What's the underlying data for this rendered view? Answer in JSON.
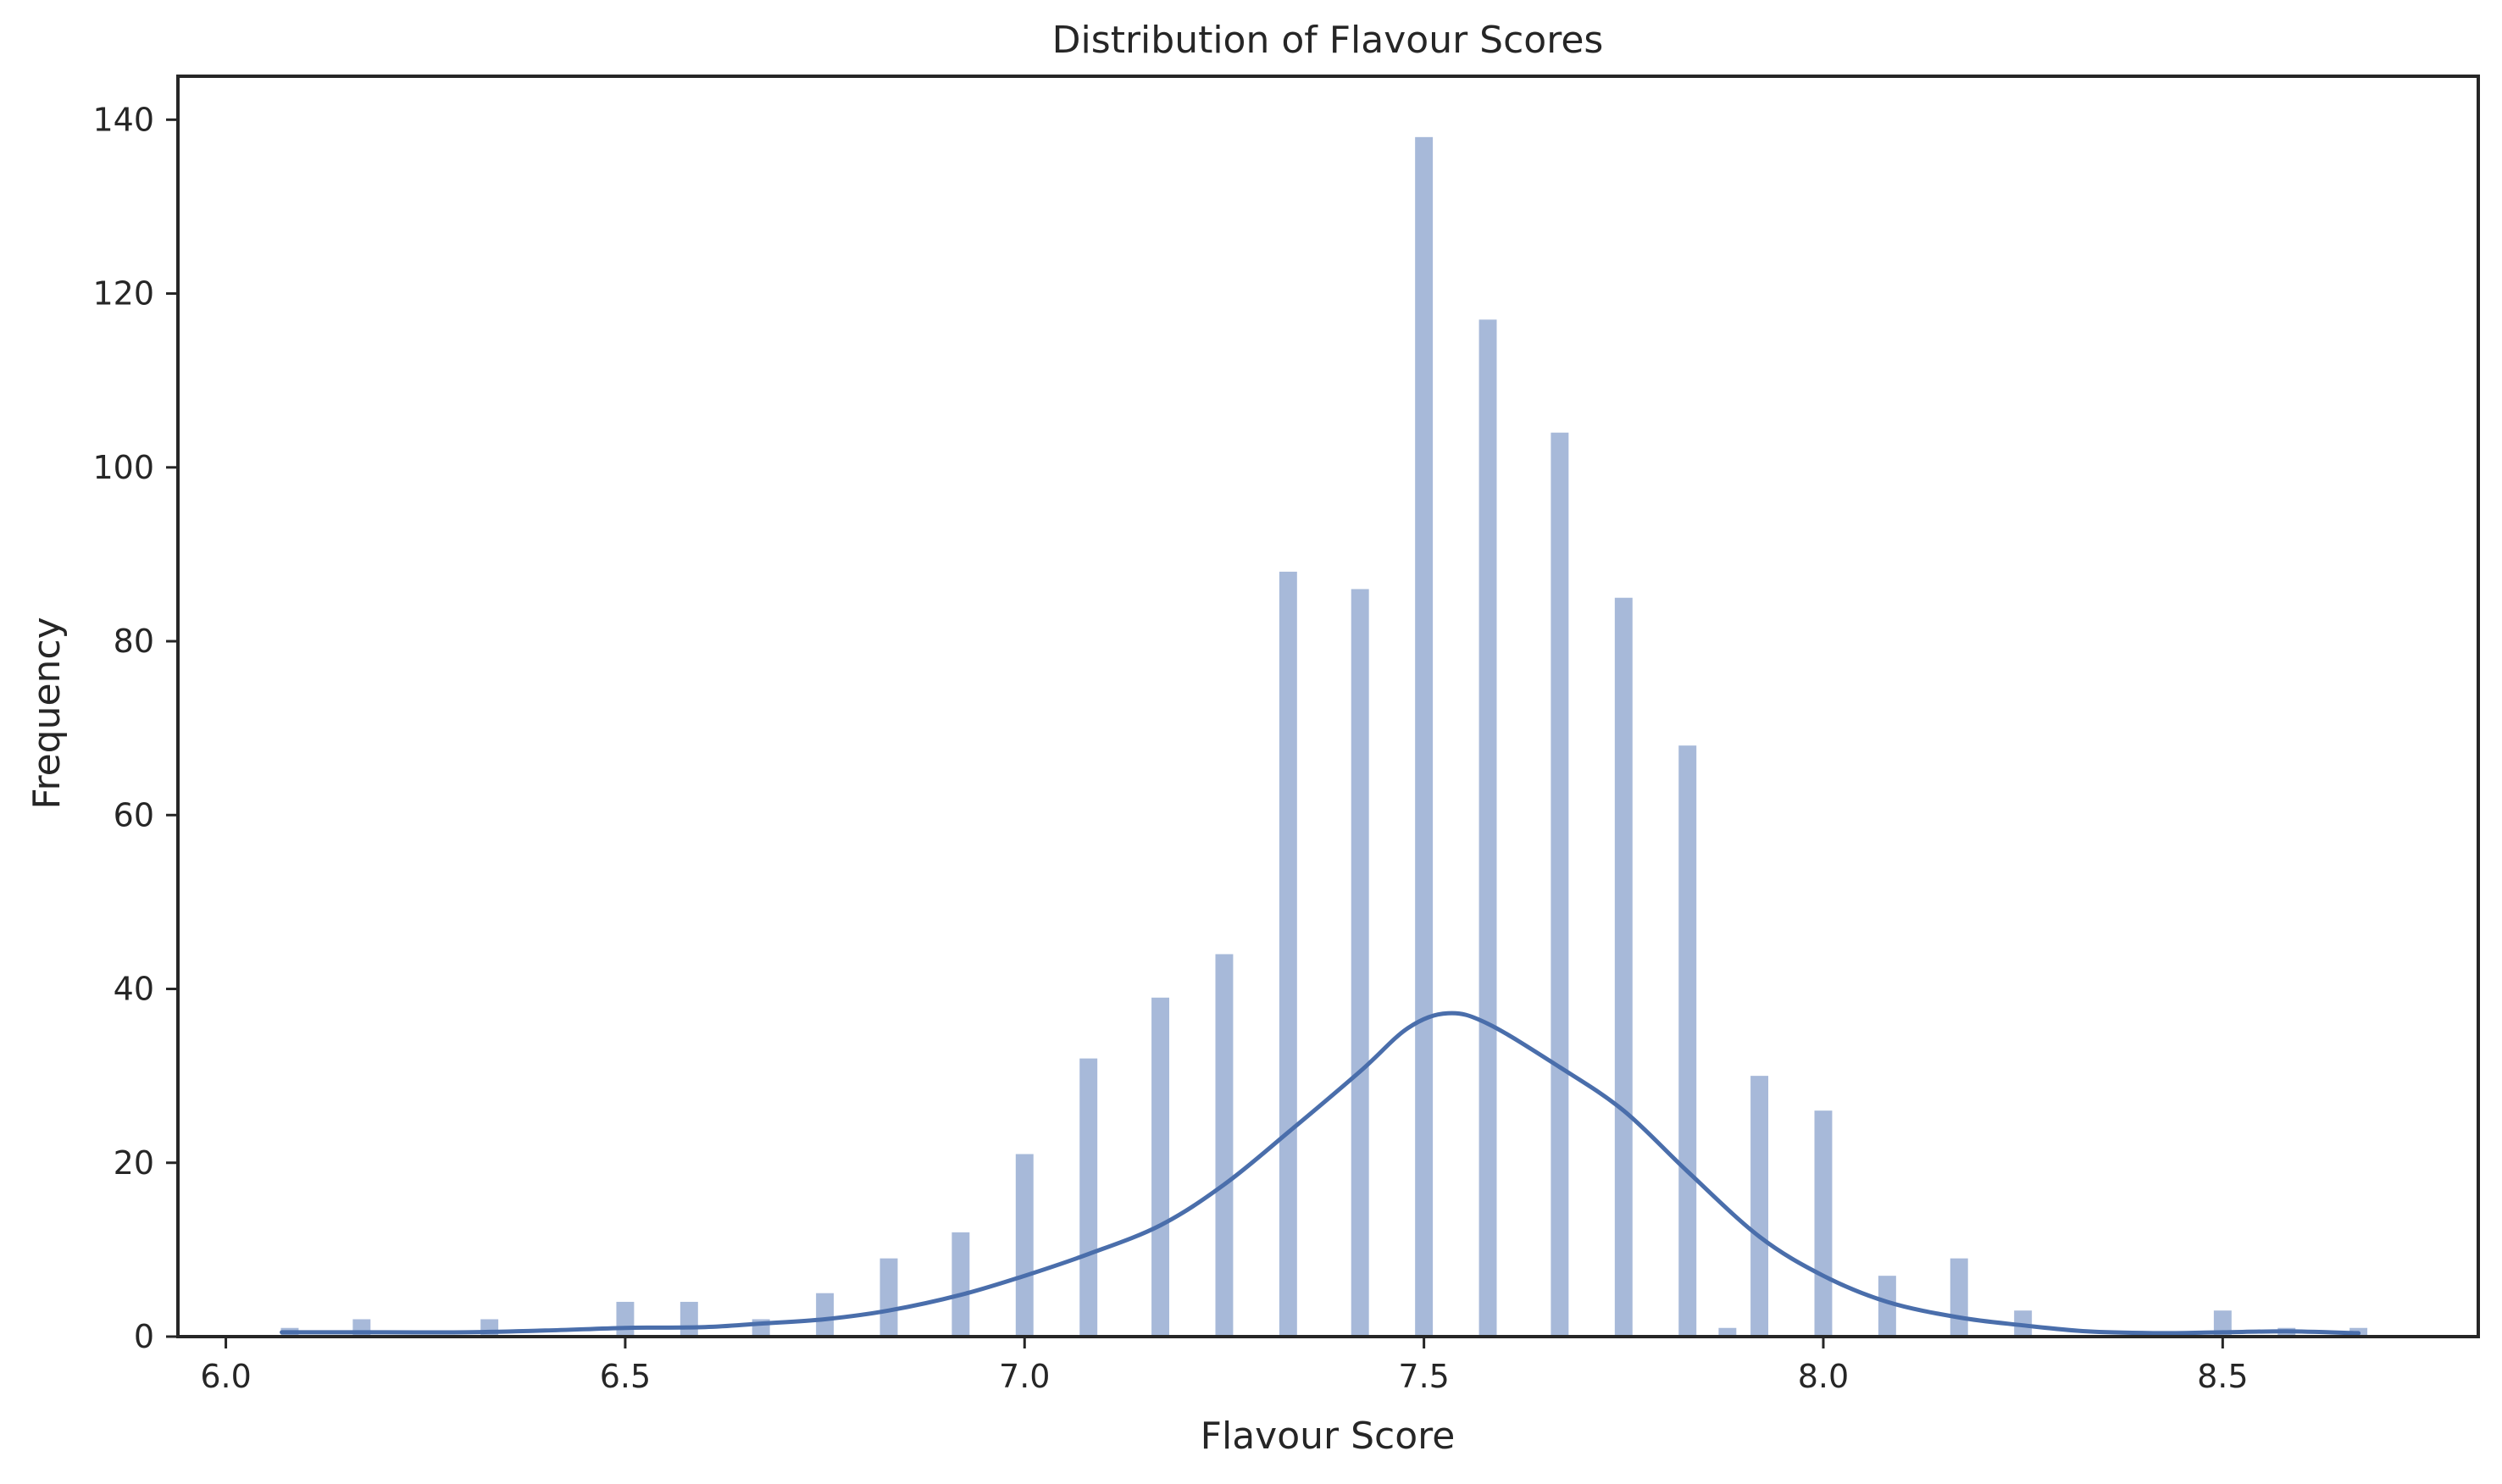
{
  "chart_data": {
    "type": "bar",
    "title": "Distribution of Flavour Scores",
    "xlabel": "Flavour Score",
    "ylabel": "Frequency",
    "xlim": [
      5.94,
      8.82
    ],
    "ylim": [
      0,
      145
    ],
    "x_ticks": [
      6.0,
      6.5,
      7.0,
      7.5,
      8.0,
      8.5
    ],
    "x_tick_labels": [
      "6.0",
      "6.5",
      "7.0",
      "7.5",
      "8.0",
      "8.5"
    ],
    "y_ticks": [
      0,
      20,
      40,
      60,
      80,
      100,
      120,
      140
    ],
    "y_tick_labels": [
      "0",
      "20",
      "40",
      "60",
      "80",
      "100",
      "120",
      "140"
    ],
    "grid": false,
    "bin_width": 0.0222,
    "bars": [
      {
        "x": 6.08,
        "count": 1
      },
      {
        "x": 6.17,
        "count": 2
      },
      {
        "x": 6.33,
        "count": 2
      },
      {
        "x": 6.5,
        "count": 4
      },
      {
        "x": 6.58,
        "count": 4
      },
      {
        "x": 6.67,
        "count": 2
      },
      {
        "x": 6.75,
        "count": 5
      },
      {
        "x": 6.83,
        "count": 9
      },
      {
        "x": 6.92,
        "count": 12
      },
      {
        "x": 7.0,
        "count": 21
      },
      {
        "x": 7.08,
        "count": 32
      },
      {
        "x": 7.17,
        "count": 39
      },
      {
        "x": 7.25,
        "count": 44
      },
      {
        "x": 7.33,
        "count": 88
      },
      {
        "x": 7.42,
        "count": 86
      },
      {
        "x": 7.5,
        "count": 138
      },
      {
        "x": 7.58,
        "count": 117
      },
      {
        "x": 7.67,
        "count": 104
      },
      {
        "x": 7.75,
        "count": 85
      },
      {
        "x": 7.83,
        "count": 68
      },
      {
        "x": 7.88,
        "count": 1
      },
      {
        "x": 7.92,
        "count": 30
      },
      {
        "x": 8.0,
        "count": 26
      },
      {
        "x": 8.08,
        "count": 7
      },
      {
        "x": 8.17,
        "count": 9
      },
      {
        "x": 8.25,
        "count": 3
      },
      {
        "x": 8.5,
        "count": 3
      },
      {
        "x": 8.58,
        "count": 1
      },
      {
        "x": 8.67,
        "count": 1
      }
    ],
    "kde_curve": [
      [
        6.07,
        0.5
      ],
      [
        6.2,
        0.5
      ],
      [
        6.3,
        0.5
      ],
      [
        6.4,
        0.7
      ],
      [
        6.5,
        1.0
      ],
      [
        6.6,
        1.1
      ],
      [
        6.67,
        1.5
      ],
      [
        6.75,
        2.0
      ],
      [
        6.83,
        3.0
      ],
      [
        6.92,
        4.8
      ],
      [
        7.0,
        7.0
      ],
      [
        7.08,
        9.5
      ],
      [
        7.17,
        12.8
      ],
      [
        7.25,
        17.5
      ],
      [
        7.33,
        23.5
      ],
      [
        7.42,
        30.5
      ],
      [
        7.48,
        35.5
      ],
      [
        7.53,
        37.2
      ],
      [
        7.58,
        36.0
      ],
      [
        7.67,
        31.0
      ],
      [
        7.75,
        26.0
      ],
      [
        7.83,
        19.0
      ],
      [
        7.92,
        11.5
      ],
      [
        8.0,
        7.0
      ],
      [
        8.08,
        4.0
      ],
      [
        8.17,
        2.2
      ],
      [
        8.25,
        1.3
      ],
      [
        8.33,
        0.6
      ],
      [
        8.42,
        0.4
      ],
      [
        8.5,
        0.5
      ],
      [
        8.58,
        0.6
      ],
      [
        8.67,
        0.4
      ]
    ]
  },
  "colors": {
    "bar": "#a7b9d9",
    "kde_line": "#4a6eab",
    "axis": "#262626"
  }
}
